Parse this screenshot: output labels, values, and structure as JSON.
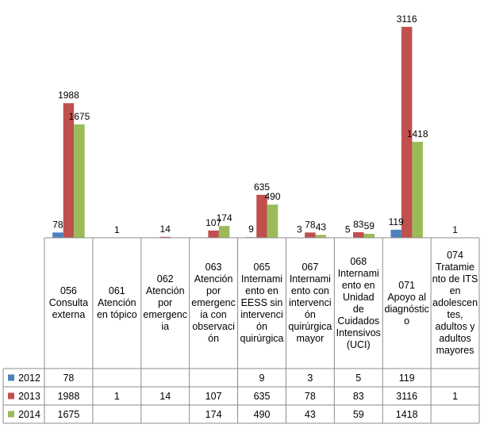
{
  "chart_data": {
    "type": "bar",
    "categories": [
      "056 Consulta externa",
      "061 Atención en tópico",
      "062 Atención por emergencia",
      "063 Atención por emergencia con observación",
      "065 Internamiento en EESS sin intervención quirúrgica",
      "067 Internamiento con intervención quirúrgica mayor",
      "068 Internamiento en Unidad de Cuidados Intensivos (UCI)",
      "071 Apoyo al diagnóstico",
      "074 Tratamiento de ITS en adolescentes, adultos y adultos mayores"
    ],
    "category_lines": [
      [
        "056",
        "Consulta",
        "externa"
      ],
      [
        "061",
        "Atención",
        "en tópico"
      ],
      [
        "062",
        "Atención",
        "por",
        "emergenc",
        "ia"
      ],
      [
        "063",
        "Atención",
        "por",
        "emergenc",
        "ia con",
        "observaci",
        "ón"
      ],
      [
        "065",
        "Internami",
        "ento en",
        "EESS sin",
        "intervenci",
        "ón",
        "quirúrgica"
      ],
      [
        "067",
        "Internami",
        "ento con",
        "intervenci",
        "ón",
        "quirúrgica",
        "mayor"
      ],
      [
        "068",
        "Internami",
        "ento en",
        "Unidad",
        "de",
        "Cuidados",
        "Intensivos",
        "(UCI)"
      ],
      [
        "071",
        "Apoyo al",
        "diagnóstic",
        "o"
      ],
      [
        "074",
        "Tratamie",
        "nto de ITS",
        "en",
        "adolescen",
        "tes,",
        "adultos y",
        "adultos",
        "mayores"
      ]
    ],
    "series": [
      {
        "name": "2012",
        "color": "#4f81bd",
        "values": [
          78,
          null,
          null,
          null,
          9,
          3,
          5,
          119,
          null
        ]
      },
      {
        "name": "2013",
        "color": "#c0504d",
        "values": [
          1988,
          1,
          14,
          107,
          635,
          78,
          83,
          3116,
          1
        ]
      },
      {
        "name": "2014",
        "color": "#9bbb59",
        "values": [
          1675,
          null,
          null,
          174,
          490,
          43,
          59,
          1418,
          null
        ]
      }
    ],
    "ylim": [
      0,
      3500
    ],
    "legend": "data-table",
    "grid": false
  }
}
